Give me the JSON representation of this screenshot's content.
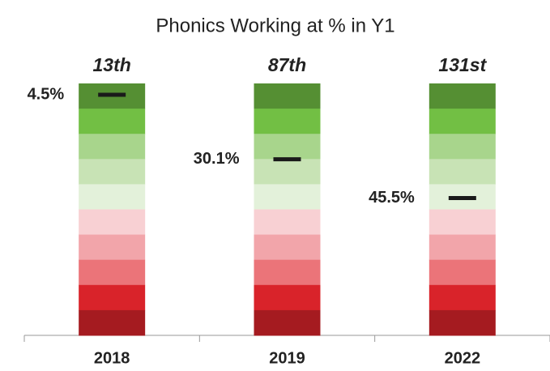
{
  "chart_data": {
    "type": "percentile_band",
    "title": "Phonics Working at % in Y1",
    "categories": [
      "2018",
      "2019",
      "2022"
    ],
    "ranks": [
      "13th",
      "87th",
      "131st"
    ],
    "values": [
      4.5,
      30.1,
      45.5
    ],
    "value_labels": [
      "4.5%",
      "30.1%",
      "45.5%"
    ],
    "ylim": [
      100,
      0
    ],
    "band_colors": [
      "#558f33",
      "#72bf44",
      "#a8d58c",
      "#c8e3b5",
      "#e3f1da",
      "#f8d0d3",
      "#f2a5aa",
      "#eb7479",
      "#d9232a",
      "#a51b20"
    ],
    "marker_color": "#1a1a1a"
  }
}
